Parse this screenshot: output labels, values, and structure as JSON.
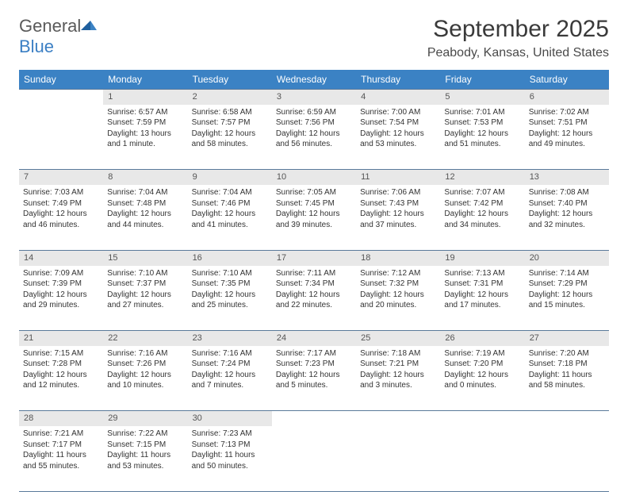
{
  "logo": {
    "word1": "General",
    "word2": "Blue"
  },
  "title": "September 2025",
  "location": "Peabody, Kansas, United States",
  "weekdays": [
    "Sunday",
    "Monday",
    "Tuesday",
    "Wednesday",
    "Thursday",
    "Friday",
    "Saturday"
  ],
  "colors": {
    "header_bg": "#3b82c4",
    "header_text": "#ffffff",
    "daynum_bg": "#e8e8e8",
    "border": "#5a7a9a",
    "logo_gray": "#5a5a5a",
    "logo_blue": "#3b7fc4",
    "body_text": "#333333"
  },
  "typography": {
    "title_fontsize": 30,
    "location_fontsize": 16,
    "weekday_fontsize": 12,
    "cell_fontsize": 10
  },
  "weeks": [
    [
      null,
      {
        "n": "1",
        "sr": "Sunrise: 6:57 AM",
        "ss": "Sunset: 7:59 PM",
        "dl": "Daylight: 13 hours and 1 minute."
      },
      {
        "n": "2",
        "sr": "Sunrise: 6:58 AM",
        "ss": "Sunset: 7:57 PM",
        "dl": "Daylight: 12 hours and 58 minutes."
      },
      {
        "n": "3",
        "sr": "Sunrise: 6:59 AM",
        "ss": "Sunset: 7:56 PM",
        "dl": "Daylight: 12 hours and 56 minutes."
      },
      {
        "n": "4",
        "sr": "Sunrise: 7:00 AM",
        "ss": "Sunset: 7:54 PM",
        "dl": "Daylight: 12 hours and 53 minutes."
      },
      {
        "n": "5",
        "sr": "Sunrise: 7:01 AM",
        "ss": "Sunset: 7:53 PM",
        "dl": "Daylight: 12 hours and 51 minutes."
      },
      {
        "n": "6",
        "sr": "Sunrise: 7:02 AM",
        "ss": "Sunset: 7:51 PM",
        "dl": "Daylight: 12 hours and 49 minutes."
      }
    ],
    [
      {
        "n": "7",
        "sr": "Sunrise: 7:03 AM",
        "ss": "Sunset: 7:49 PM",
        "dl": "Daylight: 12 hours and 46 minutes."
      },
      {
        "n": "8",
        "sr": "Sunrise: 7:04 AM",
        "ss": "Sunset: 7:48 PM",
        "dl": "Daylight: 12 hours and 44 minutes."
      },
      {
        "n": "9",
        "sr": "Sunrise: 7:04 AM",
        "ss": "Sunset: 7:46 PM",
        "dl": "Daylight: 12 hours and 41 minutes."
      },
      {
        "n": "10",
        "sr": "Sunrise: 7:05 AM",
        "ss": "Sunset: 7:45 PM",
        "dl": "Daylight: 12 hours and 39 minutes."
      },
      {
        "n": "11",
        "sr": "Sunrise: 7:06 AM",
        "ss": "Sunset: 7:43 PM",
        "dl": "Daylight: 12 hours and 37 minutes."
      },
      {
        "n": "12",
        "sr": "Sunrise: 7:07 AM",
        "ss": "Sunset: 7:42 PM",
        "dl": "Daylight: 12 hours and 34 minutes."
      },
      {
        "n": "13",
        "sr": "Sunrise: 7:08 AM",
        "ss": "Sunset: 7:40 PM",
        "dl": "Daylight: 12 hours and 32 minutes."
      }
    ],
    [
      {
        "n": "14",
        "sr": "Sunrise: 7:09 AM",
        "ss": "Sunset: 7:39 PM",
        "dl": "Daylight: 12 hours and 29 minutes."
      },
      {
        "n": "15",
        "sr": "Sunrise: 7:10 AM",
        "ss": "Sunset: 7:37 PM",
        "dl": "Daylight: 12 hours and 27 minutes."
      },
      {
        "n": "16",
        "sr": "Sunrise: 7:10 AM",
        "ss": "Sunset: 7:35 PM",
        "dl": "Daylight: 12 hours and 25 minutes."
      },
      {
        "n": "17",
        "sr": "Sunrise: 7:11 AM",
        "ss": "Sunset: 7:34 PM",
        "dl": "Daylight: 12 hours and 22 minutes."
      },
      {
        "n": "18",
        "sr": "Sunrise: 7:12 AM",
        "ss": "Sunset: 7:32 PM",
        "dl": "Daylight: 12 hours and 20 minutes."
      },
      {
        "n": "19",
        "sr": "Sunrise: 7:13 AM",
        "ss": "Sunset: 7:31 PM",
        "dl": "Daylight: 12 hours and 17 minutes."
      },
      {
        "n": "20",
        "sr": "Sunrise: 7:14 AM",
        "ss": "Sunset: 7:29 PM",
        "dl": "Daylight: 12 hours and 15 minutes."
      }
    ],
    [
      {
        "n": "21",
        "sr": "Sunrise: 7:15 AM",
        "ss": "Sunset: 7:28 PM",
        "dl": "Daylight: 12 hours and 12 minutes."
      },
      {
        "n": "22",
        "sr": "Sunrise: 7:16 AM",
        "ss": "Sunset: 7:26 PM",
        "dl": "Daylight: 12 hours and 10 minutes."
      },
      {
        "n": "23",
        "sr": "Sunrise: 7:16 AM",
        "ss": "Sunset: 7:24 PM",
        "dl": "Daylight: 12 hours and 7 minutes."
      },
      {
        "n": "24",
        "sr": "Sunrise: 7:17 AM",
        "ss": "Sunset: 7:23 PM",
        "dl": "Daylight: 12 hours and 5 minutes."
      },
      {
        "n": "25",
        "sr": "Sunrise: 7:18 AM",
        "ss": "Sunset: 7:21 PM",
        "dl": "Daylight: 12 hours and 3 minutes."
      },
      {
        "n": "26",
        "sr": "Sunrise: 7:19 AM",
        "ss": "Sunset: 7:20 PM",
        "dl": "Daylight: 12 hours and 0 minutes."
      },
      {
        "n": "27",
        "sr": "Sunrise: 7:20 AM",
        "ss": "Sunset: 7:18 PM",
        "dl": "Daylight: 11 hours and 58 minutes."
      }
    ],
    [
      {
        "n": "28",
        "sr": "Sunrise: 7:21 AM",
        "ss": "Sunset: 7:17 PM",
        "dl": "Daylight: 11 hours and 55 minutes."
      },
      {
        "n": "29",
        "sr": "Sunrise: 7:22 AM",
        "ss": "Sunset: 7:15 PM",
        "dl": "Daylight: 11 hours and 53 minutes."
      },
      {
        "n": "30",
        "sr": "Sunrise: 7:23 AM",
        "ss": "Sunset: 7:13 PM",
        "dl": "Daylight: 11 hours and 50 minutes."
      },
      null,
      null,
      null,
      null
    ]
  ]
}
